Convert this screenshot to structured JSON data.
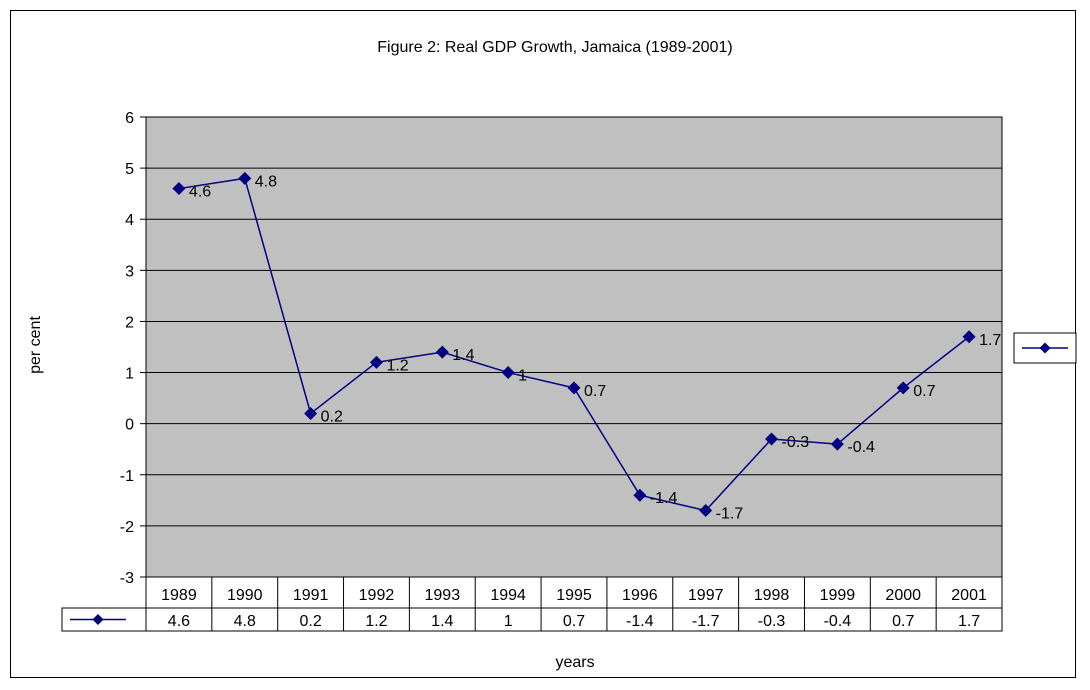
{
  "chart_data": {
    "type": "line",
    "title": "Figure 2: Real GDP Growth, Jamaica (1989-2001)",
    "xlabel": "years",
    "ylabel": "per cent",
    "categories": [
      "1989",
      "1990",
      "1991",
      "1992",
      "1993",
      "1994",
      "1995",
      "1996",
      "1997",
      "1998",
      "1999",
      "2000",
      "2001"
    ],
    "series": [
      {
        "values": [
          4.6,
          4.8,
          0.2,
          1.2,
          1.4,
          1,
          0.7,
          -1.4,
          -1.7,
          -0.3,
          -0.4,
          0.7,
          1.7
        ],
        "labels": [
          "4.6",
          "4.8",
          "0.2",
          "1.2",
          "1.4",
          "1",
          "0.7",
          "-1.4",
          "-1.7",
          "-0.3",
          "-0.4",
          "0.7",
          "1.7"
        ],
        "color": "#000080",
        "marker": "diamond"
      }
    ],
    "ylim": [
      -3,
      6
    ],
    "yticks": [
      "-3",
      "-2",
      "-1",
      "0",
      "1",
      "2",
      "3",
      "4",
      "5",
      "6"
    ],
    "grid": true,
    "plot_background": "#c0c0c0",
    "legend": "right",
    "data_table": true
  }
}
